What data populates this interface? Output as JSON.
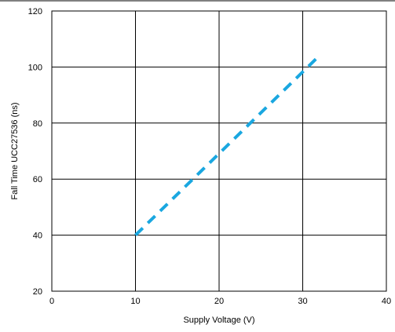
{
  "chart_data": {
    "type": "line",
    "title": "",
    "xlabel": "Supply Voltage (V)",
    "ylabel": "Fall Time UCC27536 (ns)",
    "xlim": [
      0,
      40
    ],
    "ylim": [
      20,
      120
    ],
    "x_ticks": [
      0,
      10,
      20,
      30,
      40
    ],
    "y_ticks": [
      20,
      40,
      60,
      80,
      100,
      120
    ],
    "x_tick_labels": [
      "0",
      "10",
      "20",
      "30",
      "40"
    ],
    "y_tick_labels": [
      "20",
      "40",
      "60",
      "80",
      "100",
      "120"
    ],
    "grid": true,
    "series": [
      {
        "line_style": "dashed",
        "color": "#1aa7e0",
        "x": [
          10,
          31.8
        ],
        "y": [
          40,
          103.5
        ]
      }
    ]
  }
}
